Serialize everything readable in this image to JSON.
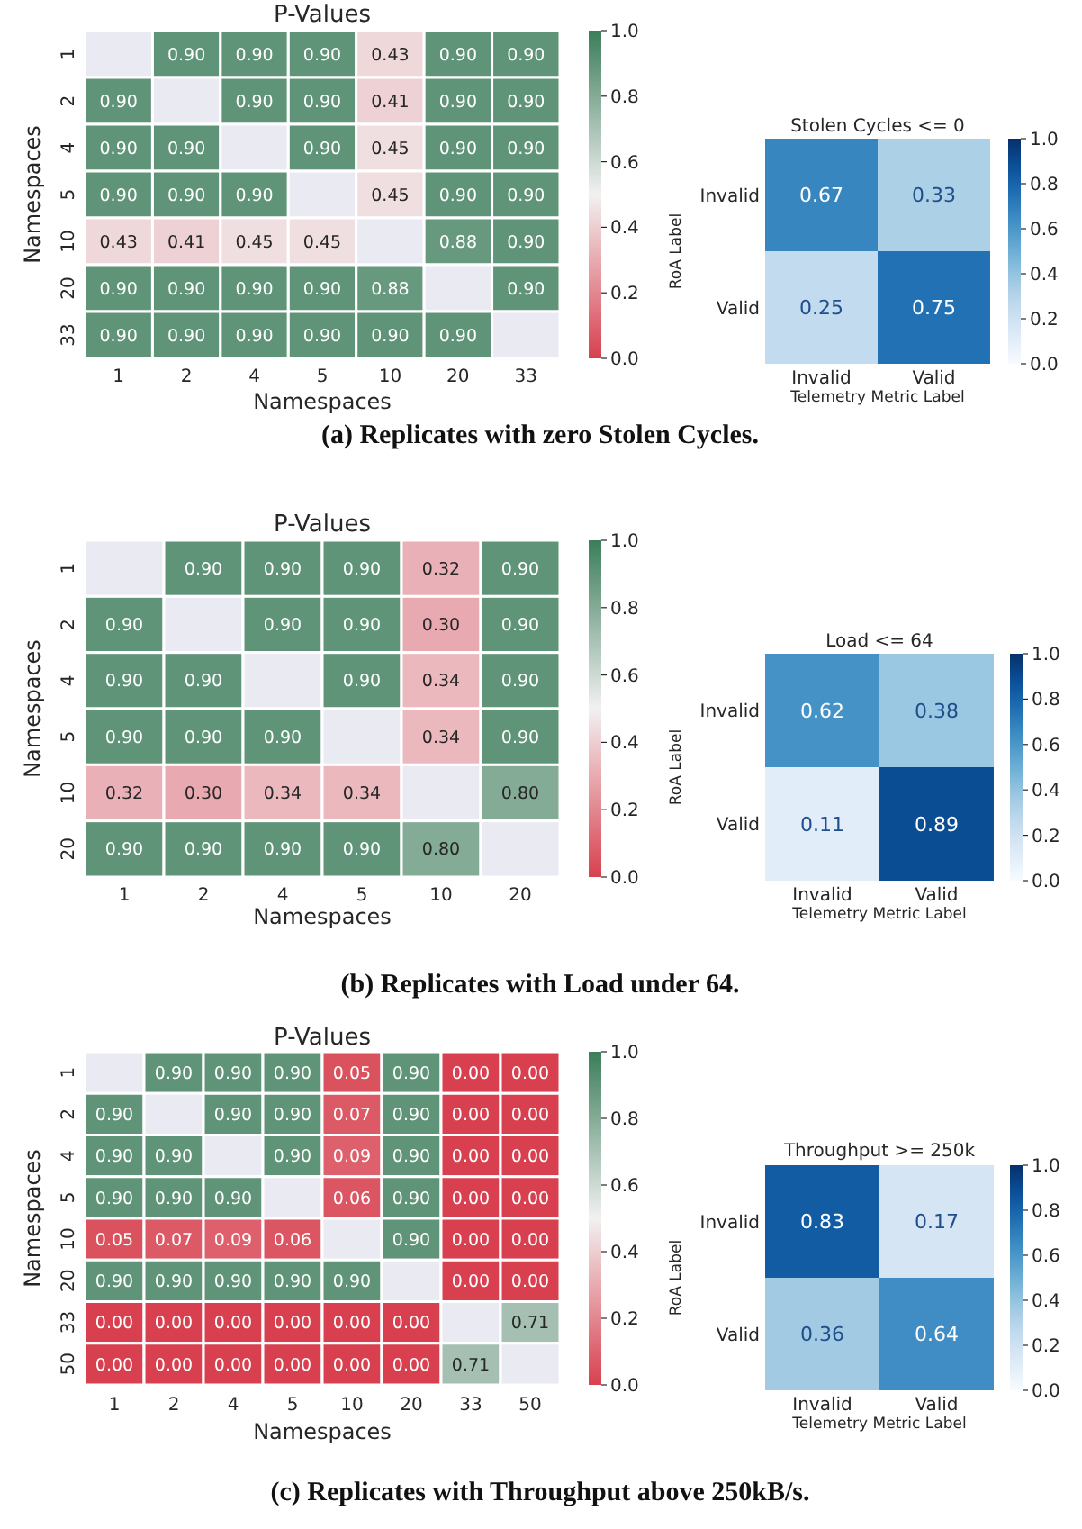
{
  "chart_data": [
    {
      "type": "heatmap",
      "title": "P-Values",
      "xlabel": "Namespaces",
      "ylabel": "Namespaces",
      "categories": [
        "1",
        "2",
        "4",
        "5",
        "10",
        "20",
        "33"
      ],
      "y_categories": [
        "1",
        "2",
        "4",
        "5",
        "10",
        "20",
        "33"
      ],
      "cells": [
        [
          null,
          0.9,
          0.9,
          0.9,
          0.43,
          0.9,
          0.9
        ],
        [
          0.9,
          null,
          0.9,
          0.9,
          0.41,
          0.9,
          0.9
        ],
        [
          0.9,
          0.9,
          null,
          0.9,
          0.45,
          0.9,
          0.9
        ],
        [
          0.9,
          0.9,
          0.9,
          null,
          0.45,
          0.9,
          0.9
        ],
        [
          0.43,
          0.41,
          0.45,
          0.45,
          null,
          0.88,
          0.9
        ],
        [
          0.9,
          0.9,
          0.9,
          0.9,
          0.88,
          null,
          0.9
        ],
        [
          0.9,
          0.9,
          0.9,
          0.9,
          0.9,
          0.9,
          null
        ]
      ],
      "cell_labels": [
        [
          null,
          "0.90",
          "0.90",
          "0.90",
          "0.43",
          "0.90",
          "0.90"
        ],
        [
          "0.90",
          null,
          "0.90",
          "0.90",
          "0.41",
          "0.90",
          "0.90"
        ],
        [
          "0.90",
          "0.90",
          null,
          "0.90",
          "0.45",
          "0.90",
          "0.90"
        ],
        [
          "0.90",
          "0.90",
          "0.90",
          null,
          "0.45",
          "0.90",
          "0.90"
        ],
        [
          "0.43",
          "0.41",
          "0.45",
          "0.45",
          null,
          "0.88",
          "0.90"
        ],
        [
          "0.90",
          "0.90",
          "0.90",
          "0.90",
          "0.88",
          null,
          "0.90"
        ],
        [
          "0.90",
          "0.90",
          "0.90",
          "0.90",
          "0.90",
          "0.90",
          null
        ]
      ],
      "clim": [
        0,
        1
      ],
      "cticks": [
        {
          "value": 0,
          "label": "0.0"
        },
        {
          "value": 0.2,
          "label": "0.2"
        },
        {
          "value": 0.4,
          "label": "0.4"
        },
        {
          "value": 0.6,
          "label": "0.6"
        },
        {
          "value": 0.8,
          "label": "0.8"
        },
        {
          "value": 1,
          "label": "1.0"
        }
      ],
      "annotations": [
        "(a) Replicates with zero Stolen Cycles."
      ]
    },
    {
      "type": "heatmap",
      "title": "Stolen Cycles <= 0",
      "xlabel": "Telemetry Metric Label",
      "ylabel": "RoA Label",
      "categories": [
        "Invalid",
        "Valid"
      ],
      "y_categories": [
        "Invalid",
        "Valid"
      ],
      "cells": [
        [
          0.67,
          0.33
        ],
        [
          0.25,
          0.75
        ]
      ],
      "data_labels": true,
      "clim": [
        0,
        1
      ],
      "cticks": [
        {
          "value": 0,
          "label": "0.0"
        },
        {
          "value": 0.2,
          "label": "0.2"
        },
        {
          "value": 0.4,
          "label": "0.4"
        },
        {
          "value": 0.6,
          "label": "0.6"
        },
        {
          "value": 0.8,
          "label": "0.8"
        },
        {
          "value": 1,
          "label": "1.0"
        }
      ]
    },
    {
      "type": "heatmap",
      "title": "P-Values",
      "xlabel": "Namespaces",
      "ylabel": "Namespaces",
      "categories": [
        "1",
        "2",
        "4",
        "5",
        "10",
        "20"
      ],
      "y_categories": [
        "1",
        "2",
        "4",
        "5",
        "10",
        "20"
      ],
      "cells": [
        [
          null,
          0.9,
          0.9,
          0.9,
          0.32,
          0.9
        ],
        [
          0.9,
          null,
          0.9,
          0.9,
          0.3,
          0.9
        ],
        [
          0.9,
          0.9,
          null,
          0.9,
          0.34,
          0.9
        ],
        [
          0.9,
          0.9,
          0.9,
          null,
          0.34,
          0.9
        ],
        [
          0.32,
          0.3,
          0.34,
          0.34,
          null,
          0.8
        ],
        [
          0.9,
          0.9,
          0.9,
          0.9,
          0.8,
          null
        ]
      ],
      "cell_labels": [
        [
          null,
          "0.90",
          "0.90",
          "0.90",
          "0.32",
          "0.90"
        ],
        [
          "0.90",
          null,
          "0.90",
          "0.90",
          "0.30",
          "0.90"
        ],
        [
          "0.90",
          "0.90",
          null,
          "0.90",
          "0.34",
          "0.90"
        ],
        [
          "0.90",
          "0.90",
          "0.90",
          null,
          "0.34",
          "0.90"
        ],
        [
          "0.32",
          "0.30",
          "0.34",
          "0.34",
          null,
          "0.80"
        ],
        [
          "0.90",
          "0.90",
          "0.90",
          "0.90",
          "0.80",
          null
        ]
      ],
      "clim": [
        0,
        1
      ],
      "cticks": [
        {
          "value": 0,
          "label": "0.0"
        },
        {
          "value": 0.2,
          "label": "0.2"
        },
        {
          "value": 0.4,
          "label": "0.4"
        },
        {
          "value": 0.6,
          "label": "0.6"
        },
        {
          "value": 0.8,
          "label": "0.8"
        },
        {
          "value": 1,
          "label": "1.0"
        }
      ],
      "annotations": [
        "(b) Replicates with Load under 64."
      ]
    },
    {
      "type": "heatmap",
      "title": "Load <= 64",
      "xlabel": "Telemetry Metric Label",
      "ylabel": "RoA Label",
      "categories": [
        "Invalid",
        "Valid"
      ],
      "y_categories": [
        "Invalid",
        "Valid"
      ],
      "cells": [
        [
          0.62,
          0.38
        ],
        [
          0.11,
          0.89
        ]
      ],
      "data_labels": true,
      "clim": [
        0,
        1
      ],
      "cticks": [
        {
          "value": 0,
          "label": "0.0"
        },
        {
          "value": 0.2,
          "label": "0.2"
        },
        {
          "value": 0.4,
          "label": "0.4"
        },
        {
          "value": 0.6,
          "label": "0.6"
        },
        {
          "value": 0.8,
          "label": "0.8"
        },
        {
          "value": 1,
          "label": "1.0"
        }
      ]
    },
    {
      "type": "heatmap",
      "title": "P-Values",
      "xlabel": "Namespaces",
      "ylabel": "Namespaces",
      "categories": [
        "1",
        "2",
        "4",
        "5",
        "10",
        "20",
        "33",
        "50"
      ],
      "y_categories": [
        "1",
        "2",
        "4",
        "5",
        "10",
        "20",
        "33",
        "50"
      ],
      "cells": [
        [
          null,
          0.9,
          0.9,
          0.9,
          0.05,
          0.9,
          0,
          0
        ],
        [
          0.9,
          null,
          0.9,
          0.9,
          0.07,
          0.9,
          0,
          0
        ],
        [
          0.9,
          0.9,
          null,
          0.9,
          0.09,
          0.9,
          0,
          0
        ],
        [
          0.9,
          0.9,
          0.9,
          null,
          0.06,
          0.9,
          0,
          0
        ],
        [
          0.05,
          0.07,
          0.09,
          0.06,
          null,
          0.9,
          0,
          0
        ],
        [
          0.9,
          0.9,
          0.9,
          0.9,
          0.9,
          null,
          0,
          0
        ],
        [
          0,
          0,
          0,
          0,
          0,
          0,
          null,
          0.71
        ],
        [
          0,
          0,
          0,
          0,
          0,
          0,
          0.71,
          null
        ]
      ],
      "cell_labels": [
        [
          null,
          "0.90",
          "0.90",
          "0.90",
          "0.05",
          "0.90",
          "0.00",
          "0.00"
        ],
        [
          "0.90",
          null,
          "0.90",
          "0.90",
          "0.07",
          "0.90",
          "0.00",
          "0.00"
        ],
        [
          "0.90",
          "0.90",
          null,
          "0.90",
          "0.09",
          "0.90",
          "0.00",
          "0.00"
        ],
        [
          "0.90",
          "0.90",
          "0.90",
          null,
          "0.06",
          "0.90",
          "0.00",
          "0.00"
        ],
        [
          "0.05",
          "0.07",
          "0.09",
          "0.06",
          null,
          "0.90",
          "0.00",
          "0.00"
        ],
        [
          "0.90",
          "0.90",
          "0.90",
          "0.90",
          "0.90",
          null,
          "0.00",
          "0.00"
        ],
        [
          "0.00",
          "0.00",
          "0.00",
          "0.00",
          "0.00",
          "0.00",
          null,
          "0.71"
        ],
        [
          "0.00",
          "0.00",
          "0.00",
          "0.00",
          "0.00",
          "0.00",
          "0.71",
          null
        ]
      ],
      "clim": [
        0,
        1
      ],
      "cticks": [
        {
          "value": 0,
          "label": "0.0"
        },
        {
          "value": 0.2,
          "label": "0.2"
        },
        {
          "value": 0.4,
          "label": "0.4"
        },
        {
          "value": 0.6,
          "label": "0.6"
        },
        {
          "value": 0.8,
          "label": "0.8"
        },
        {
          "value": 1,
          "label": "1.0"
        }
      ],
      "annotations": [
        "(c) Replicates with Throughput above 250kB/s."
      ]
    },
    {
      "type": "heatmap",
      "title": "Throughput >= 250k",
      "xlabel": "Telemetry Metric Label",
      "ylabel": "RoA Label",
      "categories": [
        "Invalid",
        "Valid"
      ],
      "y_categories": [
        "Invalid",
        "Valid"
      ],
      "cells": [
        [
          0.83,
          0.17
        ],
        [
          0.36,
          0.64
        ]
      ],
      "data_labels": true,
      "clim": [
        0,
        1
      ],
      "cticks": [
        {
          "value": 0,
          "label": "0.0"
        },
        {
          "value": 0.2,
          "label": "0.2"
        },
        {
          "value": 0.4,
          "label": "0.4"
        },
        {
          "value": 0.6,
          "label": "0.6"
        },
        {
          "value": 0.8,
          "label": "0.8"
        },
        {
          "value": 1,
          "label": "1.0"
        }
      ]
    }
  ]
}
